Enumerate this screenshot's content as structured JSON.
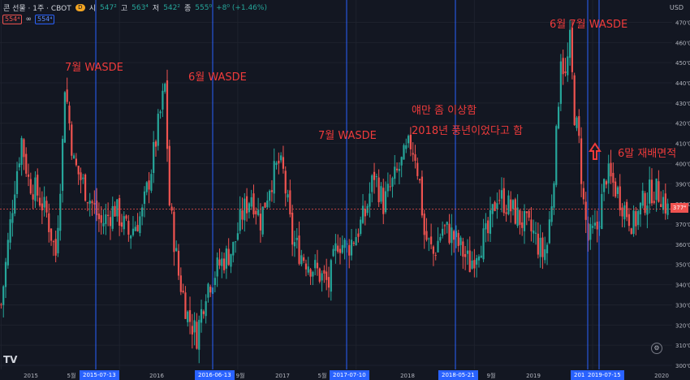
{
  "header": {
    "symbol": "콘 선물 · 1주 · CBOT",
    "badge": "D",
    "open_label": "시",
    "open": "547²",
    "high_label": "고",
    "high": "563⁴",
    "low_label": "저",
    "low": "542²",
    "close_label": "종",
    "close": "555⁰",
    "change": "+8⁰ (+1.46%)"
  },
  "indicator_row": {
    "left_value": "554⁴",
    "right_value": "554⁴"
  },
  "axis": {
    "currency": "USD",
    "y_ticks": [
      "470'0",
      "460'0",
      "450'0",
      "440'0",
      "430'0",
      "420'0",
      "410'0",
      "400'0",
      "390'0",
      "380'0",
      "370'0",
      "360'0",
      "350'0",
      "340'0",
      "330'0",
      "320'0",
      "310'0",
      "300'0"
    ],
    "x_ticks": [
      "2015",
      "5월",
      "9월",
      "2016",
      "9월",
      "2017",
      "5월",
      "2018",
      "9월",
      "2019",
      "2020"
    ]
  },
  "current_price": "377⁴",
  "date_tags": [
    "2015-07-13",
    "2016-06-13",
    "2017-07-10",
    "2018-05-21",
    "201",
    "2019-07-15"
  ],
  "annotations": [
    "7월 WASDE",
    "6월 WASDE",
    "7월 WASDE",
    "얘만 좀 이상함",
    "2018년 풍년이었다고 함",
    "6월 7월 WASDE",
    "6말 재배면적"
  ],
  "colors": {
    "up": "#26a69a",
    "down": "#ef5350",
    "vline": "#2962ff",
    "annotation": "#ef3b3b"
  },
  "chart_data": {
    "type": "candlestick",
    "title": "",
    "ylim": [
      298,
      473
    ],
    "start_year": 2015,
    "weekly_close_anchors": [
      [
        0,
        330
      ],
      [
        6,
        390
      ],
      [
        9,
        412
      ],
      [
        12,
        392
      ],
      [
        16,
        385
      ],
      [
        20,
        375
      ],
      [
        24,
        355
      ],
      [
        27,
        410
      ],
      [
        28,
        440
      ],
      [
        32,
        400
      ],
      [
        38,
        385
      ],
      [
        44,
        370
      ],
      [
        50,
        378
      ],
      [
        56,
        365
      ],
      [
        62,
        375
      ],
      [
        66,
        398
      ],
      [
        70,
        425
      ],
      [
        72,
        438
      ],
      [
        74,
        380
      ],
      [
        78,
        345
      ],
      [
        82,
        325
      ],
      [
        86,
        315
      ],
      [
        90,
        338
      ],
      [
        96,
        350
      ],
      [
        102,
        358
      ],
      [
        106,
        375
      ],
      [
        110,
        385
      ],
      [
        114,
        372
      ],
      [
        118,
        390
      ],
      [
        122,
        400
      ],
      [
        124,
        395
      ],
      [
        128,
        362
      ],
      [
        132,
        355
      ],
      [
        136,
        350
      ],
      [
        140,
        345
      ],
      [
        144,
        340
      ],
      [
        148,
        362
      ],
      [
        152,
        358
      ],
      [
        156,
        365
      ],
      [
        160,
        375
      ],
      [
        164,
        395
      ],
      [
        168,
        380
      ],
      [
        172,
        390
      ],
      [
        176,
        400
      ],
      [
        180,
        410
      ],
      [
        182,
        405
      ],
      [
        184,
        390
      ],
      [
        186,
        365
      ],
      [
        190,
        355
      ],
      [
        194,
        368
      ],
      [
        198,
        365
      ],
      [
        202,
        358
      ],
      [
        206,
        350
      ],
      [
        210,
        360
      ],
      [
        214,
        365
      ],
      [
        218,
        385
      ],
      [
        222,
        380
      ],
      [
        226,
        375
      ],
      [
        230,
        370
      ],
      [
        234,
        365
      ],
      [
        238,
        355
      ],
      [
        240,
        360
      ],
      [
        242,
        382
      ],
      [
        244,
        412
      ],
      [
        246,
        455
      ],
      [
        248,
        442
      ],
      [
        250,
        460
      ],
      [
        252,
        425
      ],
      [
        254,
        410
      ],
      [
        256,
        380
      ],
      [
        258,
        362
      ],
      [
        262,
        368
      ],
      [
        266,
        395
      ],
      [
        270,
        388
      ],
      [
        274,
        378
      ],
      [
        278,
        370
      ],
      [
        282,
        380
      ],
      [
        286,
        387
      ],
      [
        290,
        385
      ],
      [
        293,
        377
      ]
    ],
    "vertical_markers": [
      "2015-07-13",
      "2016-06-13",
      "2017-07-10",
      "2018-05-21",
      "2019-07-15"
    ]
  }
}
